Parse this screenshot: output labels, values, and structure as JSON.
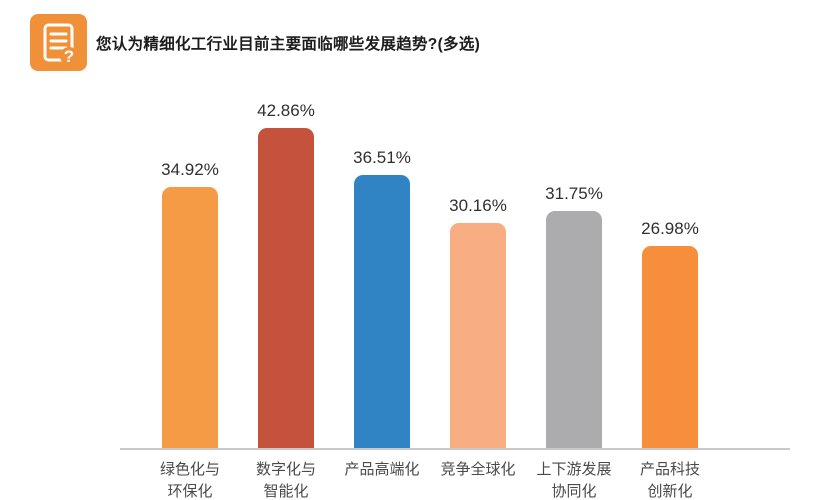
{
  "header": {
    "title": "您认为精细化工行业目前主要面临哪些发展趋势?(多选)",
    "icon": "survey-question-icon"
  },
  "chart_data": {
    "type": "bar",
    "title": "您认为精细化工行业目前主要面临哪些发展趋势?(多选)",
    "categories": [
      "绿色化与\n环保化",
      "数字化与\n智能化",
      "产品高端化",
      "竞争全球化",
      "上下游发展\n协同化",
      "产品科技\n创新化"
    ],
    "values": [
      34.92,
      42.86,
      36.51,
      30.16,
      31.75,
      26.98
    ],
    "value_labels": [
      "34.92%",
      "42.86%",
      "36.51%",
      "30.16%",
      "31.75%",
      "26.98%"
    ],
    "bar_colors": [
      "#F59B45",
      "#C5523C",
      "#3084C4",
      "#F8AE82",
      "#ACACAE",
      "#F68E3B"
    ],
    "xlabel": "",
    "ylabel": "",
    "ylim": [
      0,
      45
    ],
    "grid": false,
    "legend": false,
    "data_label_position": "above-bar"
  },
  "colors": {
    "icon_background": "#F0913A",
    "axis_line": "#C9C9C9",
    "value_label_text": "#303030",
    "category_text": "#4A4A4A",
    "background": "#FFFFFF"
  }
}
